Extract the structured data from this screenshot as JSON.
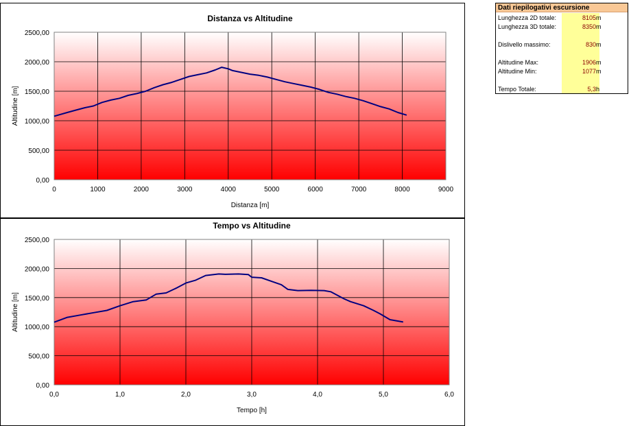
{
  "colors": {
    "line": "#000080",
    "gradient_top": "#ffffff",
    "gradient_bottom": "#ff0000",
    "grid": "#000000",
    "summary_header": "#f9c896",
    "summary_values_bg": "#ffff99",
    "summary_value_text": "#8b0000"
  },
  "summary": {
    "title": "Dati riepilogativi escursione",
    "rows": [
      {
        "label": "Lunghezza 2D totale:",
        "value": "8105",
        "unit": "m"
      },
      {
        "label": "Lunghezza 3D totale:",
        "value": "8350",
        "unit": "m"
      },
      {
        "label": "Dislivello massimo:",
        "value": "830",
        "unit": "m"
      },
      {
        "label": "Altitudine Max:",
        "value": "1906",
        "unit": "m"
      },
      {
        "label": "Altitudine Min:",
        "value": "1077",
        "unit": "m"
      },
      {
        "label": "Tempo Totale:",
        "value": "5,3",
        "unit": "h"
      }
    ]
  },
  "chart_data": [
    {
      "type": "line",
      "title": "Distanza vs Altitudine",
      "xlabel": "Distanza [m]",
      "ylabel": "Altitudine [m]",
      "xlim": [
        0,
        9000
      ],
      "ylim": [
        0,
        2500
      ],
      "x_ticks": [
        "0",
        "1000",
        "2000",
        "3000",
        "4000",
        "5000",
        "6000",
        "7000",
        "8000",
        "9000"
      ],
      "y_ticks": [
        "0,00",
        "500,00",
        "1000,00",
        "1500,00",
        "2000,00",
        "2500,00"
      ],
      "grid": true,
      "series": [
        {
          "x": [
            0,
            300,
            500,
            700,
            900,
            1100,
            1300,
            1500,
            1700,
            1900,
            2100,
            2300,
            2500,
            2700,
            2900,
            3100,
            3300,
            3500,
            3700,
            3850,
            4000,
            4100,
            4300,
            4500,
            4700,
            4900,
            5100,
            5300,
            5500,
            5700,
            5900,
            6100,
            6300,
            6500,
            6700,
            6900,
            7100,
            7300,
            7500,
            7700,
            7900,
            8100
          ],
          "y": [
            1077,
            1140,
            1180,
            1220,
            1250,
            1310,
            1350,
            1380,
            1430,
            1460,
            1500,
            1560,
            1610,
            1650,
            1700,
            1750,
            1780,
            1810,
            1860,
            1906,
            1880,
            1850,
            1820,
            1790,
            1770,
            1740,
            1700,
            1660,
            1630,
            1600,
            1570,
            1530,
            1480,
            1450,
            1410,
            1380,
            1340,
            1290,
            1240,
            1200,
            1140,
            1095
          ]
        }
      ]
    },
    {
      "type": "line",
      "title": "Tempo vs Altitudine",
      "xlabel": "Tempo [h]",
      "ylabel": "Altitudine [m]",
      "xlim": [
        0,
        6
      ],
      "ylim": [
        0,
        2500
      ],
      "x_ticks": [
        "0,0",
        "1,0",
        "2,0",
        "3,0",
        "4,0",
        "5,0",
        "6,0"
      ],
      "y_ticks": [
        "0,00",
        "500,00",
        "1000,00",
        "1500,00",
        "2000,00",
        "2500,00"
      ],
      "grid": true,
      "series": [
        {
          "x": [
            0,
            0.2,
            0.4,
            0.6,
            0.8,
            1.0,
            1.2,
            1.4,
            1.55,
            1.7,
            1.85,
            2.0,
            2.15,
            2.3,
            2.5,
            2.6,
            2.8,
            2.95,
            3.0,
            3.15,
            3.3,
            3.45,
            3.55,
            3.7,
            3.9,
            4.1,
            4.2,
            4.3,
            4.4,
            4.5,
            4.7,
            4.85,
            4.95,
            5.1,
            5.3
          ],
          "y": [
            1077,
            1160,
            1200,
            1240,
            1280,
            1360,
            1430,
            1460,
            1560,
            1580,
            1660,
            1750,
            1800,
            1880,
            1906,
            1900,
            1906,
            1895,
            1850,
            1840,
            1780,
            1720,
            1640,
            1620,
            1625,
            1620,
            1600,
            1540,
            1480,
            1430,
            1360,
            1280,
            1220,
            1120,
            1080
          ]
        }
      ]
    }
  ]
}
